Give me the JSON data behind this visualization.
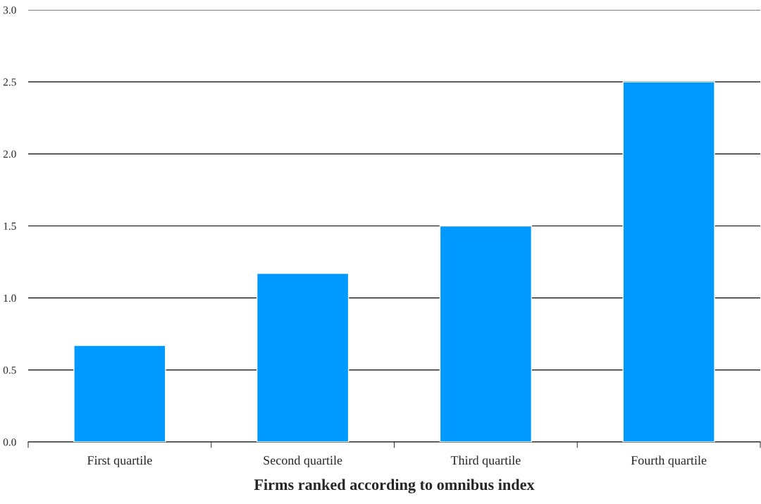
{
  "chart_data": {
    "type": "bar",
    "xlabel": "Firms ranked according to omnibus index",
    "categories": [
      "First quartile",
      "Second quartile",
      "Third quartile",
      "Fourth quartile"
    ],
    "values": [
      0.67,
      1.17,
      1.5,
      2.5
    ],
    "color": "#0099ff",
    "ylim": [
      0,
      3
    ],
    "yticks": [
      {
        "value": 0,
        "label": "0.0"
      },
      {
        "value": 0.5,
        "label": "0.5"
      },
      {
        "value": 1,
        "label": "1.0"
      },
      {
        "value": 1.5,
        "label": "1.5"
      },
      {
        "value": 2,
        "label": "2.0"
      },
      {
        "value": 2.5,
        "label": "2.5"
      },
      {
        "value": 3,
        "label": "3.0"
      }
    ],
    "grid": "y",
    "legend": false
  }
}
